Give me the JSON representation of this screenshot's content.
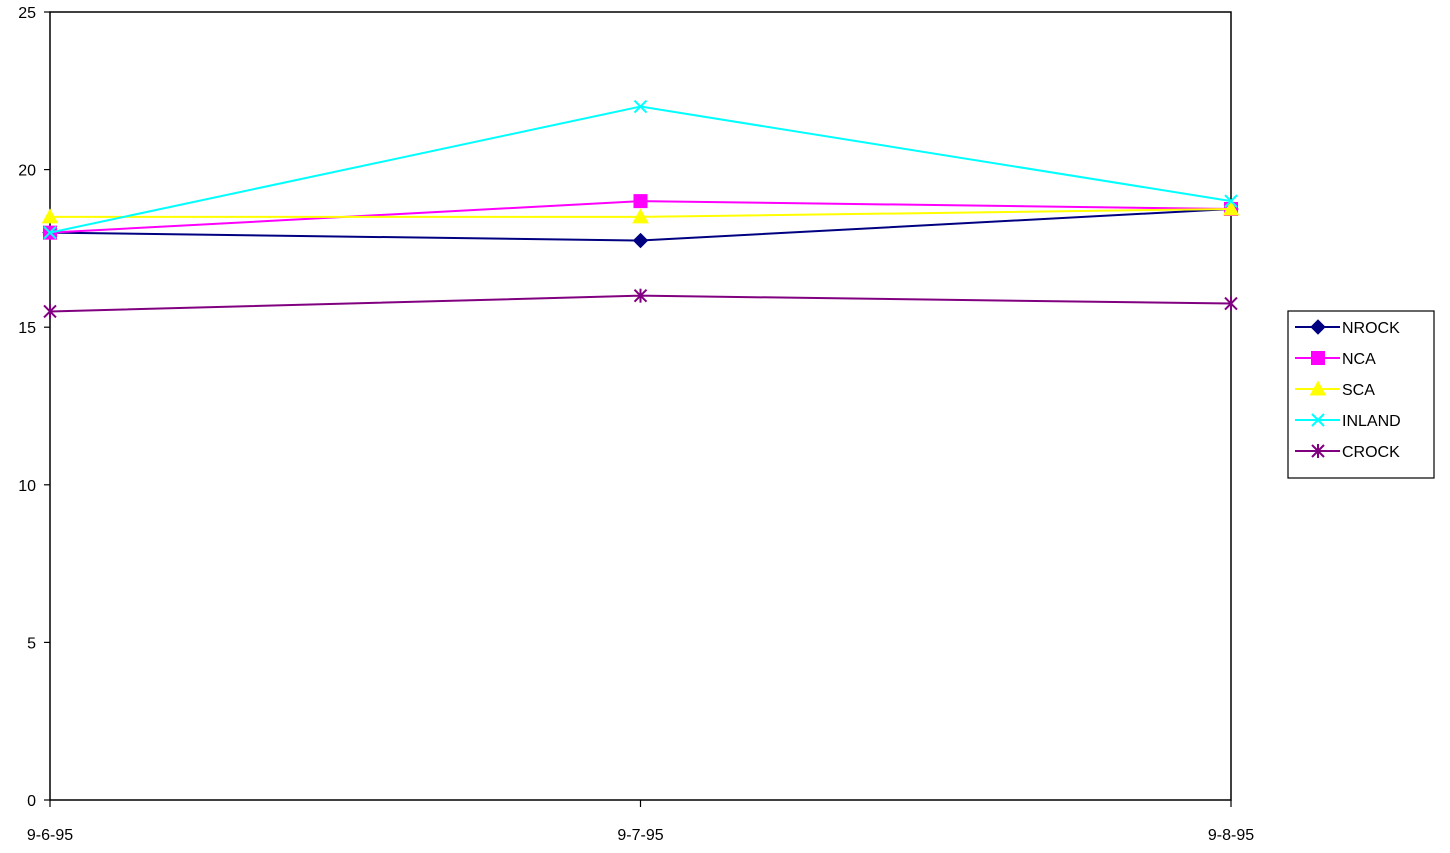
{
  "chart_data": {
    "type": "line",
    "title": "",
    "xlabel": "",
    "ylabel": "",
    "categories": [
      "9-6-95",
      "9-7-95",
      "9-8-95"
    ],
    "ylim": [
      0,
      25
    ],
    "yticks": [
      0,
      5,
      10,
      15,
      20,
      25
    ],
    "grid": false,
    "legend_position": "right",
    "series": [
      {
        "name": "NROCK",
        "color": "#000080",
        "marker": "diamond",
        "values": [
          18.0,
          17.75,
          18.75
        ]
      },
      {
        "name": "NCA",
        "color": "#ff00ff",
        "marker": "square",
        "values": [
          18.0,
          19.0,
          18.75
        ]
      },
      {
        "name": "SCA",
        "color": "#ffff00",
        "marker": "triangle",
        "values": [
          18.5,
          18.5,
          18.75
        ]
      },
      {
        "name": "INLAND",
        "color": "#00ffff",
        "marker": "x",
        "values": [
          18.0,
          22.0,
          19.0
        ]
      },
      {
        "name": "CROCK",
        "color": "#800080",
        "marker": "star",
        "values": [
          15.5,
          16.0,
          15.75
        ]
      }
    ]
  }
}
